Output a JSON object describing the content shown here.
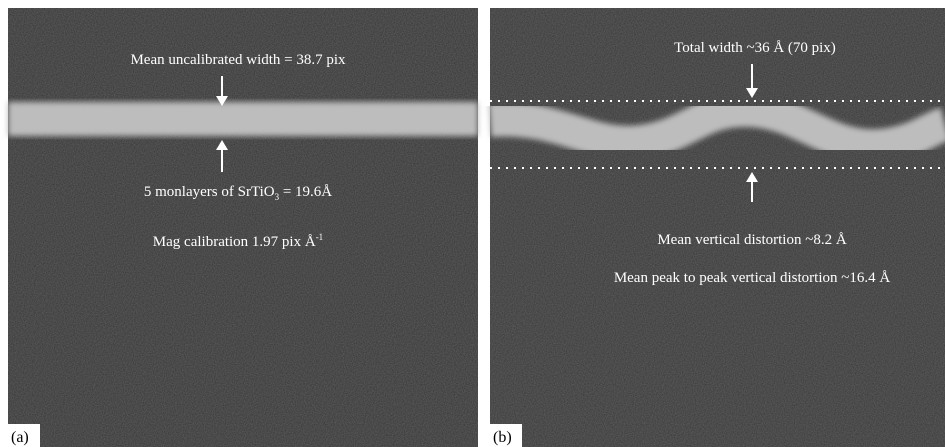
{
  "panels": [
    {
      "label": "(a)",
      "width_note": "Mean uncalibrated width = 38.7 pix",
      "layers_note": {
        "before": "5 monlayers of SrTiO",
        "sub": "3",
        "after": " = 19.6Å"
      },
      "calibration_note": {
        "before": "Mag calibration 1.97 pix Å",
        "sup": "-1"
      }
    },
    {
      "label": "(b)",
      "width_note": "Total width ~36 Å (70 pix)",
      "distortion_note": "Mean vertical distortion ~8.2 Å",
      "peak_note": "Mean peak to peak vertical distortion ~16.4 Å"
    }
  ]
}
